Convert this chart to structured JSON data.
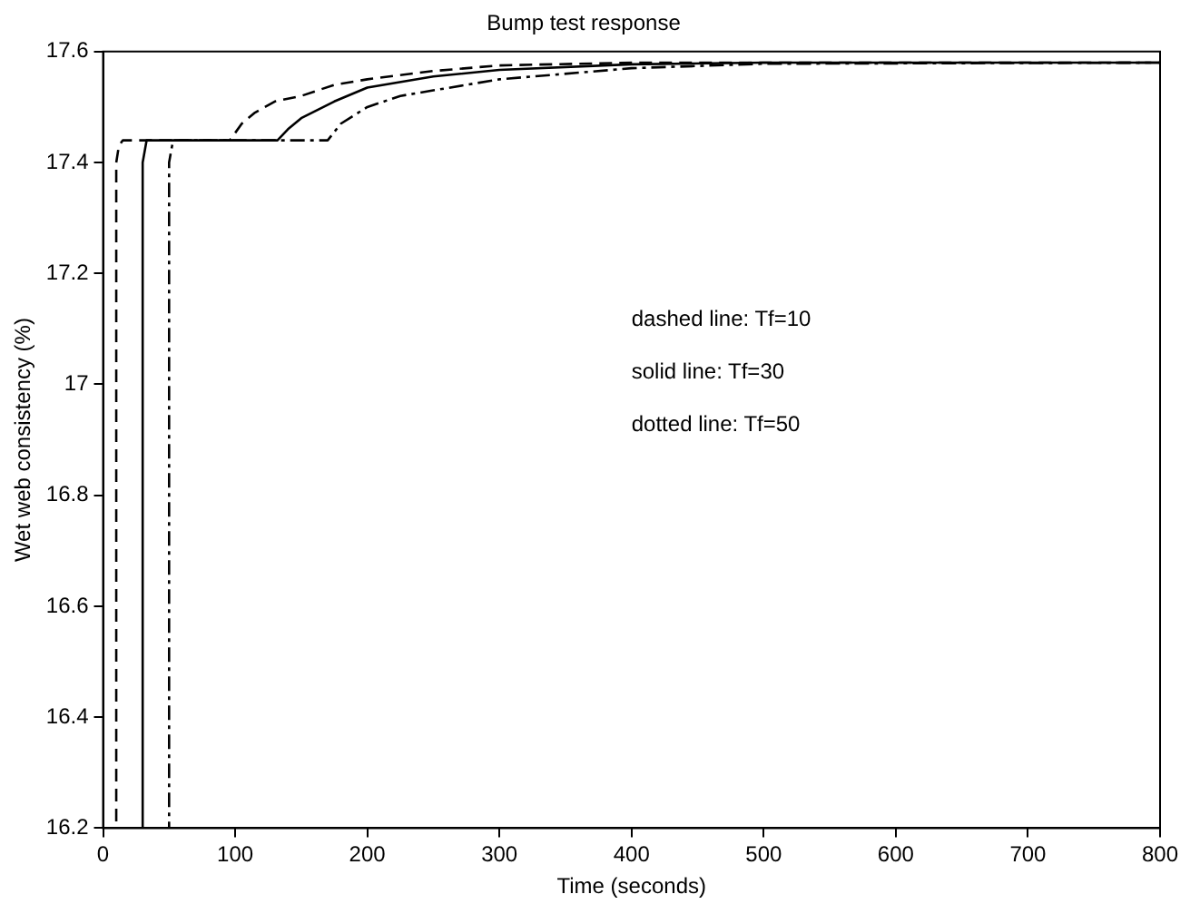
{
  "chart_data": {
    "type": "line",
    "title": "Bump test response",
    "xlabel": "Time (seconds)",
    "ylabel": "Wet web consistency (%)",
    "xlim": [
      0,
      800
    ],
    "xticks": [
      0,
      100,
      200,
      300,
      400,
      500,
      600,
      700,
      800
    ],
    "ylim": [
      16.2,
      17.6
    ],
    "yticks": [
      16.2,
      16.4,
      16.6,
      16.8,
      17,
      17.2,
      17.4,
      17.6
    ],
    "grid": false,
    "legend": false,
    "marker": "none",
    "annotations": [
      "dashed line: Tf=10",
      "solid line: Tf=30",
      "dotted line: Tf=50"
    ],
    "series": [
      {
        "color": "#000000",
        "line_style": "dashed",
        "x": [
          0,
          10,
          10,
          12,
          15,
          96,
          105,
          115,
          130,
          150,
          175,
          200,
          250,
          300,
          400,
          500,
          800
        ],
        "values": [
          16.2,
          16.2,
          17.4,
          17.43,
          17.44,
          17.44,
          17.47,
          17.49,
          17.51,
          17.52,
          17.54,
          17.55,
          17.565,
          17.575,
          17.58,
          17.58,
          17.58
        ]
      },
      {
        "color": "#000000",
        "line_style": "solid",
        "x": [
          0,
          30,
          30,
          33,
          132,
          140,
          150,
          175,
          200,
          250,
          300,
          400,
          500,
          800
        ],
        "values": [
          16.2,
          16.2,
          17.4,
          17.44,
          17.44,
          17.46,
          17.48,
          17.51,
          17.535,
          17.555,
          17.567,
          17.577,
          17.58,
          17.58
        ]
      },
      {
        "color": "#000000",
        "line_style": "dotted",
        "x": [
          0,
          50,
          50,
          53,
          170,
          180,
          200,
          225,
          250,
          300,
          400,
          500,
          800
        ],
        "values": [
          16.2,
          16.2,
          17.4,
          17.44,
          17.44,
          17.47,
          17.5,
          17.52,
          17.53,
          17.55,
          17.57,
          17.578,
          17.58
        ]
      }
    ]
  }
}
